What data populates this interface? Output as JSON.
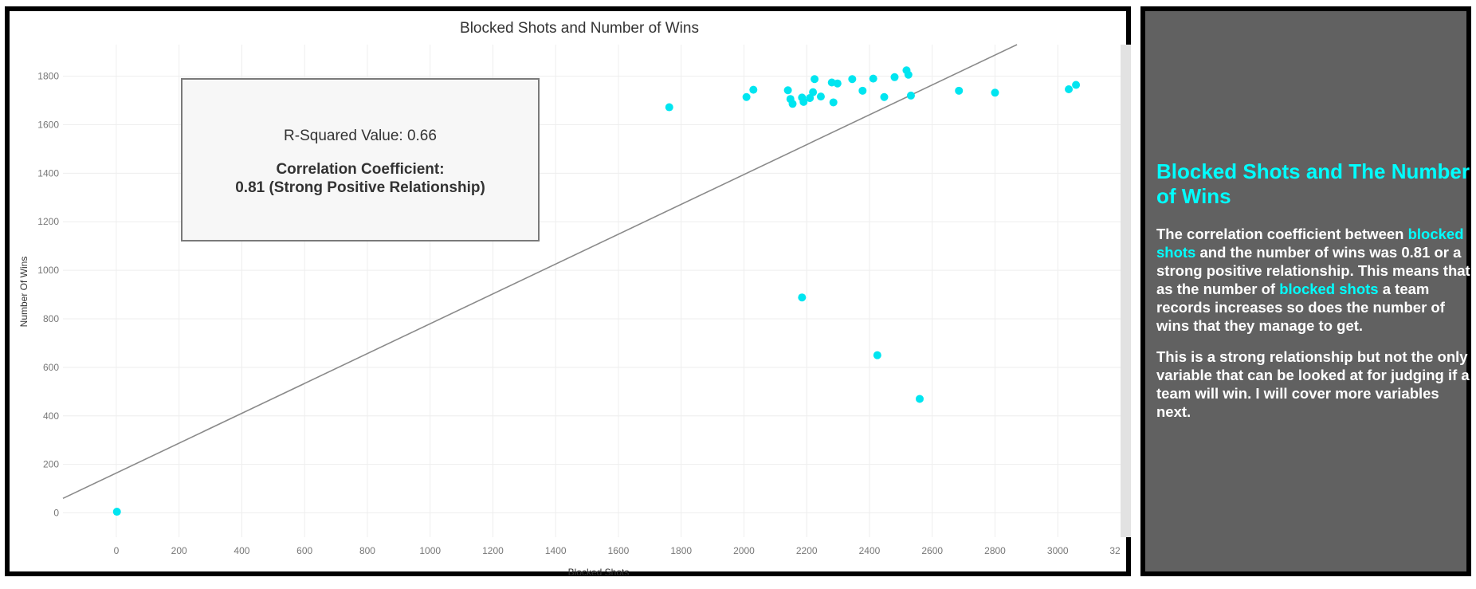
{
  "chart_data": {
    "type": "scatter",
    "title": "Blocked Shots and Number of Wins",
    "xlabel": "Blocked Shots",
    "ylabel": "Number Of Wins",
    "xlim": [
      -170,
      3200
    ],
    "ylim": [
      -100,
      1930
    ],
    "xticks": [
      0,
      200,
      400,
      600,
      800,
      1000,
      1200,
      1400,
      1600,
      1800,
      2000,
      2200,
      2400,
      2600,
      2800,
      3000
    ],
    "xtick_labels": [
      "0",
      "200",
      "400",
      "600",
      "800",
      "1000",
      "1200",
      "1400",
      "1600",
      "1800",
      "2000",
      "2200",
      "2400",
      "2600",
      "2800",
      "3000"
    ],
    "last_tick_label": "32",
    "yticks": [
      0,
      200,
      400,
      600,
      800,
      1000,
      1200,
      1400,
      1600,
      1800
    ],
    "ytick_labels": [
      "0",
      "200",
      "400",
      "600",
      "800",
      "1000",
      "1200",
      "1400",
      "1600",
      "1800"
    ],
    "grid": true,
    "point_color": "#00e5f0",
    "trend_color": "#8a8a8a",
    "points": [
      {
        "x": 2,
        "y": 5
      },
      {
        "x": 1762,
        "y": 1672
      },
      {
        "x": 2008,
        "y": 1714
      },
      {
        "x": 2030,
        "y": 1744
      },
      {
        "x": 2140,
        "y": 1742
      },
      {
        "x": 2148,
        "y": 1706
      },
      {
        "x": 2155,
        "y": 1686
      },
      {
        "x": 2185,
        "y": 1712
      },
      {
        "x": 2190,
        "y": 1694
      },
      {
        "x": 2210,
        "y": 1710
      },
      {
        "x": 2220,
        "y": 1734
      },
      {
        "x": 2225,
        "y": 1788
      },
      {
        "x": 2245,
        "y": 1716
      },
      {
        "x": 2280,
        "y": 1774
      },
      {
        "x": 2285,
        "y": 1692
      },
      {
        "x": 2298,
        "y": 1770
      },
      {
        "x": 2345,
        "y": 1788
      },
      {
        "x": 2378,
        "y": 1740
      },
      {
        "x": 2412,
        "y": 1790
      },
      {
        "x": 2447,
        "y": 1714
      },
      {
        "x": 2480,
        "y": 1796
      },
      {
        "x": 2518,
        "y": 1824
      },
      {
        "x": 2524,
        "y": 1806
      },
      {
        "x": 2532,
        "y": 1720
      },
      {
        "x": 2685,
        "y": 1740
      },
      {
        "x": 2800,
        "y": 1732
      },
      {
        "x": 3035,
        "y": 1746
      },
      {
        "x": 3058,
        "y": 1764
      },
      {
        "x": 2185,
        "y": 888
      },
      {
        "x": 2425,
        "y": 650
      },
      {
        "x": 2560,
        "y": 470
      }
    ],
    "trend_line": {
      "x1": -170,
      "y1": 60,
      "x2": 2870,
      "y2": 1930
    }
  },
  "stats_box": {
    "r_squared": "R-Squared Value: 0.66",
    "corr_label": "Correlation Coefficient:",
    "corr_value": "0.81 (Strong Positive Relationship)"
  },
  "side_panel": {
    "heading": "Blocked Shots and The Number of Wins",
    "p1_a": "The correlation coefficient between ",
    "p1_hl1": "blocked shots",
    "p1_b": " and the number of wins was 0.81 or a strong positive relationship. This means that as the number of ",
    "p1_hl2": "blocked shots",
    "p1_c": " a team records increases so does the number of wins that they manage to get.",
    "p2": "This is a strong relationship but not the only variable that can be looked at for judging if a team will win. I will cover more variables next."
  },
  "colors": {
    "accent": "#00ffff",
    "panel_bg": "#616161",
    "border": "#000000"
  }
}
